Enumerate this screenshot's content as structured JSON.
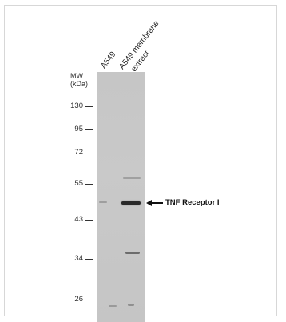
{
  "lanes": [
    {
      "label": "A549"
    },
    {
      "label": "A549 membrane",
      "label2": "extract"
    }
  ],
  "mw_header": {
    "line1": "MW",
    "line2": "(kDa)"
  },
  "markers": [
    "130",
    "95",
    "72",
    "55",
    "43",
    "34",
    "26"
  ],
  "target": {
    "label": "TNF Receptor I"
  }
}
